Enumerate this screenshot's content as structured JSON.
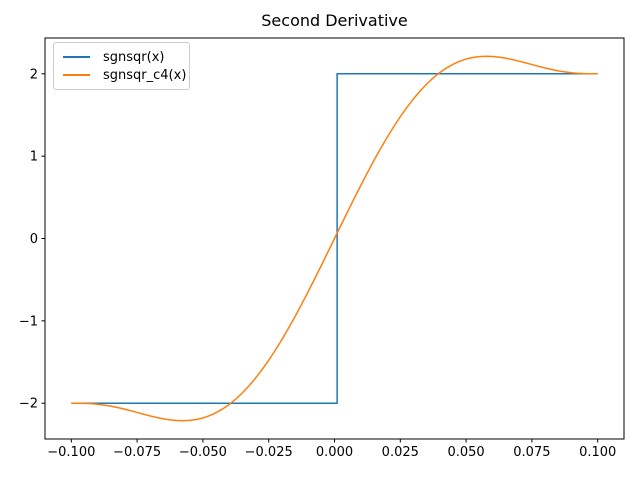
{
  "window": {
    "background": "#ffffff"
  },
  "chart_data": {
    "type": "line",
    "title": "Second Derivative",
    "xlabel": "",
    "ylabel": "",
    "xlim": [
      -0.11,
      0.11
    ],
    "ylim": [
      -2.4347,
      2.4347
    ],
    "grid": false,
    "x_ticks": {
      "values": [
        -0.1,
        -0.075,
        -0.05,
        -0.025,
        0.0,
        0.025,
        0.05,
        0.075,
        0.1
      ],
      "labels": [
        "−0.100",
        "−0.075",
        "−0.050",
        "−0.025",
        "0.000",
        "0.025",
        "0.050",
        "0.075",
        "0.100"
      ]
    },
    "y_ticks": {
      "values": [
        -2,
        -1,
        0,
        1,
        2
      ],
      "labels": [
        "−2",
        "−1",
        "0",
        "1",
        "2"
      ]
    },
    "legend": {
      "position": "upper left",
      "entries": [
        {
          "label": "sgnsqr(x)",
          "color": "#1f77b4"
        },
        {
          "label": "sgnsqr_c4(x)",
          "color": "#ff7f0e"
        }
      ]
    },
    "series": [
      {
        "name": "sgnsqr(x)",
        "color": "#1f77b4",
        "line_width": 1.5,
        "points": [
          [
            -0.1,
            -2
          ],
          [
            0.001,
            -2
          ],
          [
            0.001,
            2
          ],
          [
            0.1,
            2
          ]
        ]
      },
      {
        "name": "sgnsqr_c4(x)",
        "color": "#ff7f0e",
        "line_width": 1.5,
        "points": [
          [
            -0.1,
            -2.0
          ],
          [
            -0.0975,
            -2.0009
          ],
          [
            -0.095,
            -2.0024
          ],
          [
            -0.0925,
            -2.0058
          ],
          [
            -0.09,
            -2.0127
          ],
          [
            -0.0875,
            -2.0231
          ],
          [
            -0.085,
            -2.036
          ],
          [
            -0.0825,
            -2.0521
          ],
          [
            -0.08,
            -2.0707
          ],
          [
            -0.0775,
            -2.091
          ],
          [
            -0.075,
            -2.1124
          ],
          [
            -0.0725,
            -2.134
          ],
          [
            -0.07,
            -2.1547
          ],
          [
            -0.0675,
            -2.1737
          ],
          [
            -0.065,
            -2.1901
          ],
          [
            -0.0625,
            -2.2027
          ],
          [
            -0.06,
            -2.2107
          ],
          [
            -0.0575,
            -2.2131
          ],
          [
            -0.055,
            -2.2092
          ],
          [
            -0.0525,
            -2.1982
          ],
          [
            -0.05,
            -2.1792
          ],
          [
            -0.0475,
            -2.1518
          ],
          [
            -0.045,
            -2.1155
          ],
          [
            -0.0425,
            -2.0698
          ],
          [
            -0.04,
            -2.0145
          ],
          [
            -0.0375,
            -1.9494
          ],
          [
            -0.035,
            -1.8744
          ],
          [
            -0.0325,
            -1.7896
          ],
          [
            -0.03,
            -1.6951
          ],
          [
            -0.0275,
            -1.5913
          ],
          [
            -0.025,
            -1.4785
          ],
          [
            -0.0225,
            -1.3572
          ],
          [
            -0.02,
            -1.2279
          ],
          [
            -0.0175,
            -1.0913
          ],
          [
            -0.015,
            -0.9482
          ],
          [
            -0.0125,
            -0.7992
          ],
          [
            -0.01,
            -0.6454
          ],
          [
            -0.0075,
            -0.4876
          ],
          [
            -0.005,
            -0.3268
          ],
          [
            -0.0025,
            -0.1639
          ],
          [
            0.0,
            0.0
          ],
          [
            0.0025,
            0.1639
          ],
          [
            0.005,
            0.3268
          ],
          [
            0.0075,
            0.4876
          ],
          [
            0.01,
            0.6454
          ],
          [
            0.0125,
            0.7992
          ],
          [
            0.015,
            0.9482
          ],
          [
            0.0175,
            1.0913
          ],
          [
            0.02,
            1.2279
          ],
          [
            0.0225,
            1.3572
          ],
          [
            0.025,
            1.4785
          ],
          [
            0.0275,
            1.5913
          ],
          [
            0.03,
            1.6951
          ],
          [
            0.0325,
            1.7896
          ],
          [
            0.035,
            1.8744
          ],
          [
            0.0375,
            1.9494
          ],
          [
            0.04,
            2.0145
          ],
          [
            0.0425,
            2.0698
          ],
          [
            0.045,
            2.1155
          ],
          [
            0.0475,
            2.1518
          ],
          [
            0.05,
            2.1792
          ],
          [
            0.0525,
            2.1982
          ],
          [
            0.055,
            2.2092
          ],
          [
            0.0575,
            2.2131
          ],
          [
            0.06,
            2.2107
          ],
          [
            0.0625,
            2.2027
          ],
          [
            0.065,
            2.1901
          ],
          [
            0.0675,
            2.1737
          ],
          [
            0.07,
            2.1547
          ],
          [
            0.0725,
            2.134
          ],
          [
            0.075,
            2.1124
          ],
          [
            0.0775,
            2.091
          ],
          [
            0.08,
            2.0707
          ],
          [
            0.0825,
            2.0521
          ],
          [
            0.085,
            2.036
          ],
          [
            0.0875,
            2.0231
          ],
          [
            0.09,
            2.0127
          ],
          [
            0.0925,
            2.0058
          ],
          [
            0.095,
            2.0024
          ],
          [
            0.0975,
            2.0009
          ],
          [
            0.1,
            2.0
          ]
        ]
      }
    ]
  }
}
